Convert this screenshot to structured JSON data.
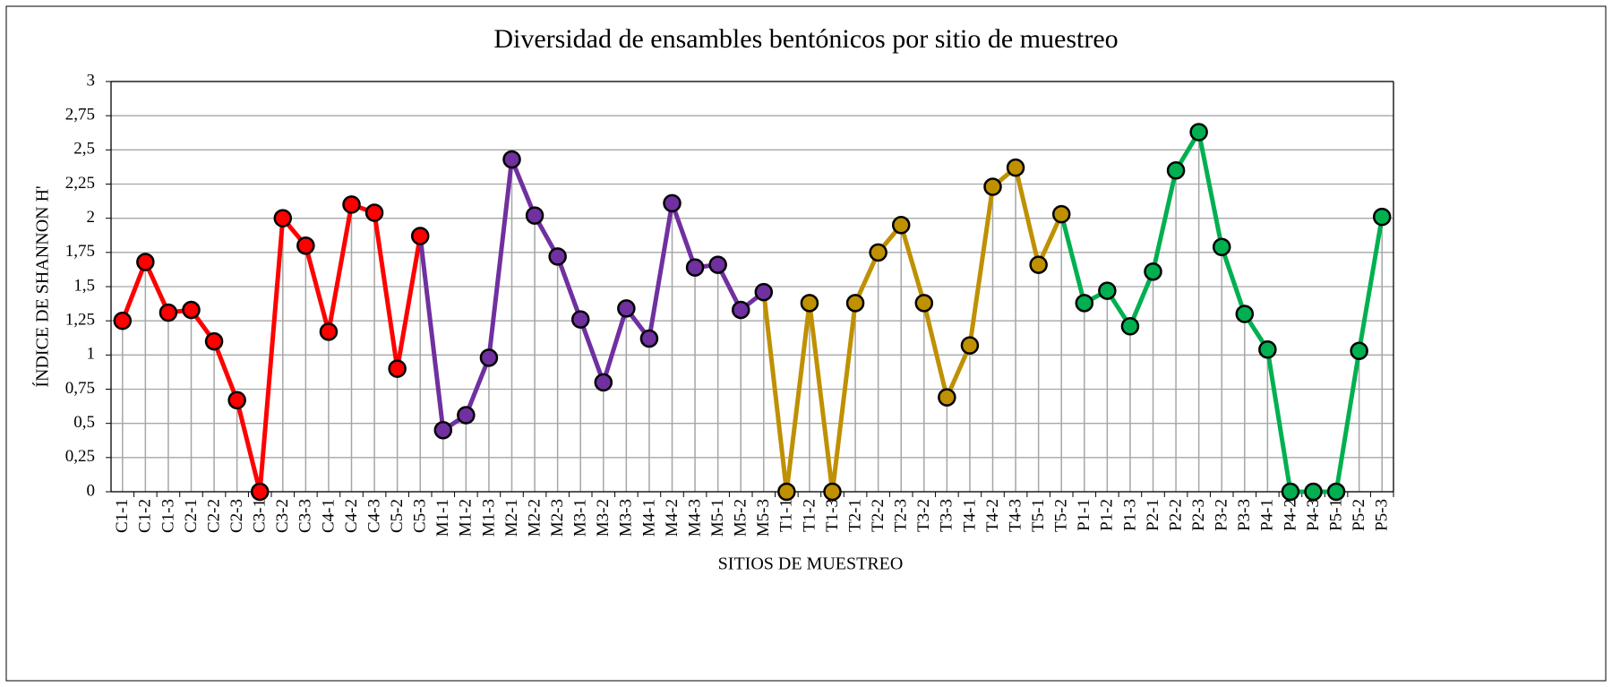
{
  "chart_data": {
    "type": "line",
    "title": "Diversidad de ensambles bentónicos  por sitio de muestreo",
    "x_label": "SITIOS DE MUESTREO",
    "y_label": "ÍNDICE DE SHANNON H'",
    "categories": [
      "C1-1",
      "C1-2",
      "C1-3",
      "C2-1",
      "C2-2",
      "C2-3",
      "C3-1",
      "C3-2",
      "C3-3",
      "C4-1",
      "C4-2",
      "C4-3",
      "C5-2",
      "C5-3",
      "M1-1",
      "M1-2",
      "M1-3",
      "M2-1",
      "M2-2",
      "M2-3",
      "M3-1",
      "M3-2",
      "M3-3",
      "M4-1",
      "M4-2",
      "M4-3",
      "M5-1",
      "M5-2",
      "M5-3",
      "T1-1",
      "T1-2",
      "T1-3",
      "T2-1",
      "T2-2",
      "T2-3",
      "T3-2",
      "T3-3",
      "T4-1",
      "T4-2",
      "T4-3",
      "T5-1",
      "T5-2",
      "P1-1",
      "P1-2",
      "P1-3",
      "P2-1",
      "P2-2",
      "P2-3",
      "P3-2",
      "P3-3",
      "P4-1",
      "P4-2",
      "P4-3",
      "P5-1",
      "P5-2",
      "P5-3"
    ],
    "series": [
      {
        "color": "#ff0000",
        "values": [
          1.25,
          1.68,
          1.31,
          1.33,
          1.1,
          0.67,
          0,
          2.0,
          1.8,
          1.17,
          2.1,
          2.04,
          0.9,
          1.87,
          null,
          null,
          null,
          null,
          null,
          null,
          null,
          null,
          null,
          null,
          null,
          null,
          null,
          null,
          null,
          null,
          null,
          null,
          null,
          null,
          null,
          null,
          null,
          null,
          null,
          null,
          null,
          null,
          null,
          null,
          null,
          null,
          null,
          null,
          null,
          null,
          null,
          null,
          null,
          null,
          null,
          null
        ]
      },
      {
        "color": "#7030a0",
        "values": [
          null,
          null,
          null,
          null,
          null,
          null,
          null,
          null,
          null,
          null,
          null,
          null,
          null,
          null,
          0.45,
          0.56,
          0.98,
          2.43,
          2.02,
          1.72,
          1.26,
          0.8,
          1.34,
          1.12,
          2.11,
          1.64,
          1.66,
          1.33,
          1.46,
          null,
          null,
          null,
          null,
          null,
          null,
          null,
          null,
          null,
          null,
          null,
          null,
          null,
          null,
          null,
          null,
          null,
          null,
          null,
          null,
          null,
          null,
          null,
          null,
          null,
          null,
          null
        ]
      },
      {
        "color": "#bf9000",
        "values": [
          null,
          null,
          null,
          null,
          null,
          null,
          null,
          null,
          null,
          null,
          null,
          null,
          null,
          null,
          null,
          null,
          null,
          null,
          null,
          null,
          null,
          null,
          null,
          null,
          null,
          null,
          null,
          null,
          null,
          0,
          1.38,
          0,
          1.38,
          1.75,
          1.95,
          1.38,
          0.69,
          1.07,
          2.23,
          2.37,
          1.66,
          2.03,
          null,
          null,
          null,
          null,
          null,
          null,
          null,
          null,
          null,
          null,
          null,
          null,
          null,
          null
        ]
      },
      {
        "color": "#00b050",
        "values": [
          null,
          null,
          null,
          null,
          null,
          null,
          null,
          null,
          null,
          null,
          null,
          null,
          null,
          null,
          null,
          null,
          null,
          null,
          null,
          null,
          null,
          null,
          null,
          null,
          null,
          null,
          null,
          null,
          null,
          null,
          null,
          null,
          null,
          null,
          null,
          null,
          null,
          null,
          null,
          null,
          null,
          null,
          1.38,
          1.47,
          1.21,
          1.61,
          2.35,
          2.63,
          1.79,
          1.3,
          1.04,
          0,
          0,
          0,
          1.03,
          2.01
        ]
      }
    ],
    "ylim": [
      0,
      3
    ],
    "yticks": [
      0,
      {
        "value": 0.25,
        "label": "0,25"
      },
      {
        "value": 0.5,
        "label": "0,5"
      },
      {
        "value": 0.75,
        "label": "0,75"
      },
      1,
      {
        "value": 1.25,
        "label": "1,25"
      },
      {
        "value": 1.5,
        "label": "1,5"
      },
      {
        "value": 1.75,
        "label": "1,75"
      },
      2,
      {
        "value": 2.25,
        "label": "2,25"
      },
      {
        "value": 2.5,
        "label": "2,5"
      },
      {
        "value": 2.75,
        "label": "2,75"
      },
      3
    ],
    "grid": true
  }
}
